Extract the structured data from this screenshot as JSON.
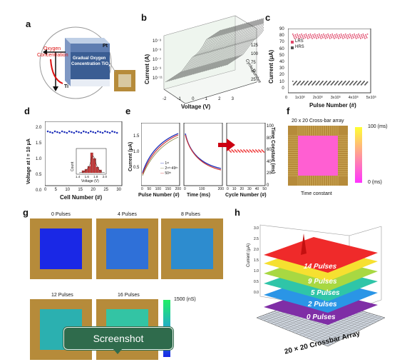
{
  "panels": {
    "a": {
      "label": "a",
      "oxygen": "Oxygen",
      "concentration": "Concentration",
      "pt": "Pt",
      "gradual_line1": "Gradual Oxygen",
      "gradual_line2": "Concentration TiO",
      "sub_x": "x",
      "ti": "Ti"
    },
    "b": {
      "label": "b",
      "ylabel": "Current (A)",
      "xlabel": "Voltage (V)",
      "zlabel": "Cycle Number",
      "yticks": [
        "10⁻³",
        "10⁻⁵",
        "10⁻⁷",
        "10⁻⁹",
        "10⁻¹¹"
      ],
      "xticks": [
        "-2",
        "-1",
        "0",
        "1",
        "2",
        "3"
      ],
      "zticks": [
        "125",
        "100",
        "75",
        "50",
        "25"
      ]
    },
    "c": {
      "label": "c",
      "ylabel": "Current (μA)",
      "xlabel": "Pulse Number (#)",
      "legend": [
        "LRS",
        "HRS"
      ],
      "yticks": [
        "90",
        "80",
        "70",
        "60",
        "50",
        "40",
        "30",
        "20",
        "10",
        "0"
      ],
      "xticks": [
        "0",
        "1x10⁵",
        "2x10⁵",
        "3x10⁵",
        "4x10⁵",
        "5x10⁵"
      ]
    },
    "d": {
      "label": "d",
      "ylabel": "Voltage at I = 10 μA",
      "xlabel": "Cell Number (#)",
      "yticks": [
        "2.0",
        "1.5",
        "1.0",
        "0.5",
        "0.0"
      ],
      "xticks": [
        "0",
        "5",
        "10",
        "15",
        "20",
        "25",
        "30"
      ],
      "inset_ylabel": "Count",
      "inset_xlabel": "Voltage (V)",
      "inset_xticks": [
        "1.4",
        "1.6",
        "1.8",
        "2.0"
      ]
    },
    "e": {
      "label": "e",
      "ylabel_left": "Current (μA)",
      "ylabel_right": "Time Constant (ms)",
      "xlabel1": "Pulse Number (#)",
      "xlabel2": "Time (ms)",
      "xlabel3": "Cycle Number (#)",
      "legend": [
        "1ˢᵗ",
        "2ⁿᵈ~49ᵗʰ",
        "50ᵗʰ"
      ],
      "yticks_left": [
        "1.5",
        "1.0",
        "0.5"
      ],
      "yticks_right": [
        "100",
        "80",
        "60",
        "40",
        "20",
        "0"
      ],
      "xticks1": [
        "0",
        "50",
        "100",
        "150",
        "200"
      ],
      "xticks2": [
        "0",
        "100",
        "200"
      ],
      "xticks3": [
        "0",
        "10",
        "20",
        "30",
        "40",
        "50"
      ]
    },
    "f": {
      "label": "f",
      "title": "20 x 20 Cross-bar array",
      "caption": "Time constant",
      "scale_max": "100 (ms)",
      "scale_min": "0 (ms)",
      "colors": {
        "top": "#ffff33",
        "mid": "#ff66cc",
        "bottom": "#ff33ff",
        "fill": "#ff5fd2"
      }
    },
    "g": {
      "label": "g",
      "titles": [
        "0 Pulses",
        "4 Pulses",
        "8 Pulses",
        "12 Pulses",
        "16 Pulses"
      ],
      "scale_max": "1500 (nS)"
    },
    "h": {
      "label": "h",
      "zlabel": "Current (μA)",
      "zticks": [
        "3.0",
        "2.5",
        "2.0",
        "1.5",
        "1.0",
        "0.5",
        "0.0"
      ],
      "layers": [
        "14 Pulses",
        "9 Pulses",
        "5 Pulses",
        "2 Pulses",
        "0 Pulses"
      ],
      "base": "20 × 20 Crossbar Array"
    }
  },
  "toast": {
    "text": "Screenshot"
  }
}
